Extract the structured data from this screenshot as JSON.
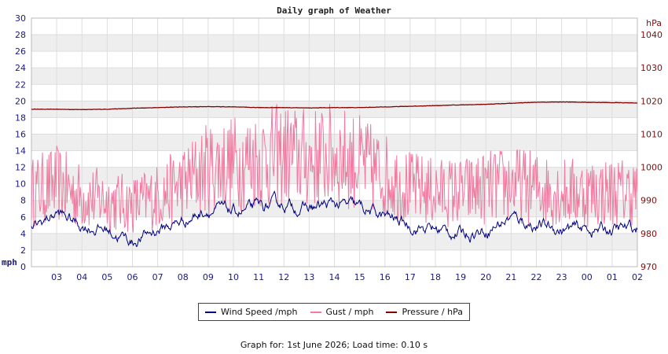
{
  "chart_data": {
    "type": "line",
    "title": "Daily graph of Weather",
    "left_axis": {
      "unit": "mph",
      "ylim": [
        0,
        30
      ],
      "ticks": [
        "0",
        "2",
        "4",
        "6",
        "8",
        "10",
        "12",
        "14",
        "16",
        "18",
        "20",
        "22",
        "24",
        "26",
        "28",
        "30"
      ]
    },
    "right_axis": {
      "unit": "hPa",
      "ylim": [
        970,
        1045
      ],
      "ticks": [
        "970",
        "980",
        "990",
        "1000",
        "1010",
        "1020",
        "1030",
        "1040"
      ]
    },
    "x_tick_labels": [
      "03",
      "04",
      "05",
      "06",
      "07",
      "08",
      "09",
      "10",
      "11",
      "12",
      "13",
      "14",
      "15",
      "16",
      "17",
      "18",
      "19",
      "20",
      "21",
      "22",
      "23",
      "00",
      "01",
      "02"
    ],
    "grid": true,
    "legend_position": "bottom",
    "series": [
      {
        "name": "Wind Speed /mph",
        "axis": "left",
        "color": "#000080",
        "x": [
          "02",
          "03",
          "04",
          "05",
          "06",
          "07",
          "08",
          "09",
          "10",
          "11",
          "12",
          "13",
          "14",
          "15",
          "16",
          "17",
          "18",
          "19",
          "20",
          "21",
          "22",
          "23",
          "00",
          "01",
          "02"
        ],
        "values": [
          4.5,
          6.5,
          5.0,
          4.5,
          3.0,
          4.5,
          5.5,
          7.0,
          6.5,
          7.0,
          7.5,
          7.0,
          7.5,
          7.0,
          6.0,
          5.0,
          4.5,
          4.0,
          4.5,
          6.0,
          5.0,
          4.5,
          4.5,
          4.5,
          4.5
        ]
      },
      {
        "name": "Gust / mph",
        "axis": "left",
        "color": "#f07aa0",
        "x": [
          "02",
          "03",
          "04",
          "05",
          "06",
          "07",
          "08",
          "09",
          "10",
          "11",
          "12",
          "13",
          "14",
          "15",
          "16",
          "17",
          "18",
          "19",
          "20",
          "21",
          "22",
          "23",
          "00",
          "01",
          "02"
        ],
        "values": [
          9.0,
          10.0,
          8.5,
          8.0,
          7.5,
          8.5,
          10.0,
          12.0,
          12.5,
          13.0,
          13.5,
          13.0,
          13.5,
          12.5,
          11.0,
          9.5,
          9.0,
          9.0,
          9.5,
          10.0,
          9.5,
          9.0,
          9.0,
          9.0,
          9.0
        ]
      },
      {
        "name": "Pressure / hPa",
        "axis": "right",
        "color": "#800000",
        "x": [
          "02",
          "03",
          "04",
          "05",
          "06",
          "07",
          "08",
          "09",
          "10",
          "11",
          "12",
          "13",
          "14",
          "15",
          "16",
          "17",
          "18",
          "19",
          "20",
          "21",
          "22",
          "23",
          "00",
          "01",
          "02"
        ],
        "values": [
          1017.5,
          1017.5,
          1017.4,
          1017.5,
          1017.8,
          1018.0,
          1018.2,
          1018.3,
          1018.2,
          1018.0,
          1018.0,
          1017.9,
          1018.0,
          1018.0,
          1018.2,
          1018.4,
          1018.6,
          1018.8,
          1019.0,
          1019.3,
          1019.6,
          1019.7,
          1019.6,
          1019.5,
          1019.4
        ]
      }
    ]
  },
  "footer": {
    "text": "Graph for: 1st June 2026; Load time: 0.10 s"
  }
}
